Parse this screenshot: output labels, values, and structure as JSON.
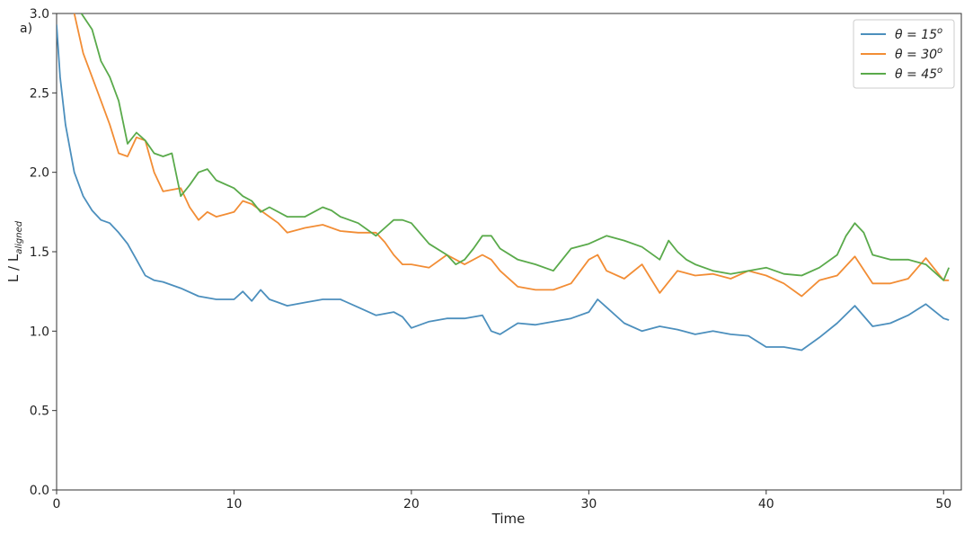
{
  "chart_data": {
    "type": "line",
    "panel_label": "a)",
    "xlabel": "Time",
    "ylabel_main": "L / L",
    "ylabel_sub": "aligned",
    "xlim": [
      0,
      51
    ],
    "ylim": [
      0.0,
      3.0
    ],
    "x_ticks": [
      0,
      10,
      20,
      30,
      40,
      50
    ],
    "x_tick_labels": [
      "0",
      "10",
      "20",
      "30",
      "40",
      "50"
    ],
    "y_ticks": [
      0.0,
      0.5,
      1.0,
      1.5,
      2.0,
      2.5,
      3.0
    ],
    "y_tick_labels": [
      "0.0",
      "0.5",
      "1.0",
      "1.5",
      "2.0",
      "2.5",
      "3.0"
    ],
    "grid": false,
    "legend_position": "top-right",
    "series": [
      {
        "name": "θ = 15°",
        "legend_main": "θ = 15",
        "legend_sup": "o",
        "color": "#4c8fbd",
        "x": [
          0,
          0.2,
          0.5,
          1,
          1.5,
          2,
          2.5,
          3,
          3.5,
          4,
          4.5,
          5,
          5.5,
          6,
          7,
          8,
          9,
          10,
          10.5,
          11,
          11.5,
          12,
          12.5,
          13,
          14,
          15,
          16,
          17,
          18,
          19,
          19.5,
          20,
          21,
          22,
          23,
          24,
          24.5,
          25,
          26,
          27,
          28,
          29,
          30,
          30.5,
          31,
          32,
          33,
          34,
          35,
          36,
          37,
          38,
          39,
          40,
          41,
          42,
          43,
          44,
          45,
          46,
          47,
          48,
          49,
          50,
          50.3
        ],
        "y": [
          2.93,
          2.6,
          2.3,
          2.0,
          1.85,
          1.76,
          1.7,
          1.68,
          1.62,
          1.55,
          1.45,
          1.35,
          1.32,
          1.31,
          1.27,
          1.22,
          1.2,
          1.2,
          1.25,
          1.19,
          1.26,
          1.2,
          1.18,
          1.16,
          1.18,
          1.2,
          1.2,
          1.15,
          1.1,
          1.12,
          1.09,
          1.02,
          1.06,
          1.08,
          1.08,
          1.1,
          1.0,
          0.98,
          1.05,
          1.04,
          1.06,
          1.08,
          1.12,
          1.2,
          1.15,
          1.05,
          1.0,
          1.03,
          1.01,
          0.98,
          1.0,
          0.98,
          0.97,
          0.9,
          0.9,
          0.88,
          0.96,
          1.05,
          1.16,
          1.03,
          1.05,
          1.1,
          1.17,
          1.08,
          1.07
        ]
      },
      {
        "name": "θ = 30°",
        "legend_main": "θ = 30",
        "legend_sup": "o",
        "color": "#f28d35",
        "x": [
          1,
          1.5,
          2,
          2.5,
          3,
          3.5,
          4,
          4.5,
          5,
          5.5,
          6,
          7,
          7.5,
          8,
          8.5,
          9,
          10,
          10.5,
          11,
          12,
          12.5,
          13,
          14,
          15,
          16,
          17,
          18,
          18.5,
          19,
          19.5,
          20,
          21,
          22,
          22.5,
          23,
          24,
          24.5,
          25,
          26,
          27,
          28,
          29,
          30,
          30.5,
          31,
          32,
          33,
          34,
          35,
          36,
          37,
          38,
          39,
          40,
          41,
          42,
          43,
          44,
          45,
          46,
          47,
          48,
          49,
          50,
          50.3
        ],
        "y": [
          3.0,
          2.75,
          2.6,
          2.45,
          2.3,
          2.12,
          2.1,
          2.22,
          2.2,
          2.0,
          1.88,
          1.9,
          1.78,
          1.7,
          1.75,
          1.72,
          1.75,
          1.82,
          1.8,
          1.72,
          1.68,
          1.62,
          1.65,
          1.67,
          1.63,
          1.62,
          1.62,
          1.56,
          1.48,
          1.42,
          1.42,
          1.4,
          1.48,
          1.45,
          1.42,
          1.48,
          1.45,
          1.38,
          1.28,
          1.26,
          1.26,
          1.3,
          1.45,
          1.48,
          1.38,
          1.33,
          1.42,
          1.24,
          1.38,
          1.35,
          1.36,
          1.33,
          1.38,
          1.35,
          1.3,
          1.22,
          1.32,
          1.35,
          1.47,
          1.3,
          1.3,
          1.33,
          1.46,
          1.32,
          1.32
        ]
      },
      {
        "name": "θ = 45°",
        "legend_main": "θ = 45",
        "legend_sup": "o",
        "color": "#5aaa4b",
        "x": [
          1.4,
          2,
          2.5,
          3,
          3.5,
          4,
          4.5,
          5,
          5.5,
          6,
          6.5,
          7,
          7.5,
          8,
          8.5,
          9,
          10,
          10.5,
          11,
          11.5,
          12,
          13,
          14,
          14.5,
          15,
          15.5,
          16,
          17,
          18,
          18.5,
          19,
          19.5,
          20,
          21,
          22,
          22.5,
          23,
          23.5,
          24,
          24.5,
          25,
          26,
          27,
          28,
          29,
          30,
          31,
          32,
          33,
          34,
          34.5,
          35,
          35.5,
          36,
          37,
          38,
          39,
          40,
          41,
          42,
          43,
          44,
          44.5,
          45,
          45.5,
          46,
          47,
          48,
          49,
          50,
          50.3
        ],
        "y": [
          3.0,
          2.9,
          2.7,
          2.6,
          2.45,
          2.18,
          2.25,
          2.2,
          2.12,
          2.1,
          2.12,
          1.85,
          1.92,
          2.0,
          2.02,
          1.95,
          1.9,
          1.85,
          1.82,
          1.75,
          1.78,
          1.72,
          1.72,
          1.75,
          1.78,
          1.76,
          1.72,
          1.68,
          1.6,
          1.65,
          1.7,
          1.7,
          1.68,
          1.55,
          1.48,
          1.42,
          1.45,
          1.52,
          1.6,
          1.6,
          1.52,
          1.45,
          1.42,
          1.38,
          1.52,
          1.55,
          1.6,
          1.57,
          1.53,
          1.45,
          1.57,
          1.5,
          1.45,
          1.42,
          1.38,
          1.36,
          1.38,
          1.4,
          1.36,
          1.35,
          1.4,
          1.48,
          1.6,
          1.68,
          1.62,
          1.48,
          1.45,
          1.45,
          1.42,
          1.32,
          1.4
        ]
      }
    ]
  }
}
